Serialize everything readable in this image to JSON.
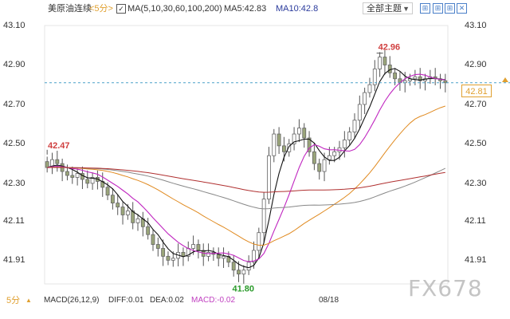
{
  "header": {
    "instrument": "美原油连续",
    "period": "<5分>",
    "check": "✓",
    "ma_params": "MA(5,10,30,60,100,200)",
    "ma5": "MA5:42.83",
    "ma10": "MA10:42.8",
    "theme_select": "全部主题",
    "tool_icons": [
      "grid-icon",
      "grid-icon",
      "grid-icon",
      "close-icon"
    ]
  },
  "footer": {
    "period": "5分",
    "macd_params": "MACD(26,12,9)",
    "diff": "DIFF:0.01",
    "dea": "DEA:0.02",
    "macd": "MACD:-0.02",
    "date": "08/18"
  },
  "watermark": "FX678",
  "colors": {
    "up": "#333333",
    "down": "#333333",
    "ma5": "#111111",
    "ma10": "#c026c0",
    "ma30": "#e08a20",
    "ma60": "#888888",
    "ma100": "#b03030",
    "current": "#e0a030",
    "high_label": "#d04040",
    "low_label": "#2a9a2a"
  },
  "chart_data": {
    "type": "candlestick",
    "y_ticks": [
      "43.10",
      "42.90",
      "42.70",
      "42.50",
      "42.30",
      "42.11",
      "41.91"
    ],
    "ylim": [
      41.79,
      43.1
    ],
    "current_price": "42.81",
    "annotations": {
      "left_label": "42.47",
      "high_label": "42.96",
      "low_label": "41.80"
    },
    "candles_close": [
      42.38,
      42.42,
      42.4,
      42.36,
      42.34,
      42.33,
      42.35,
      42.32,
      42.3,
      42.33,
      42.31,
      42.28,
      42.24,
      42.2,
      42.18,
      42.14,
      42.16,
      42.1,
      42.12,
      42.08,
      42.04,
      41.99,
      41.97,
      41.93,
      41.91,
      41.92,
      41.95,
      41.93,
      41.97,
      41.99,
      41.96,
      41.93,
      41.95,
      41.94,
      41.92,
      41.93,
      41.9,
      41.86,
      41.84,
      41.86,
      41.9,
      41.96,
      42.05,
      42.22,
      42.44,
      42.55,
      42.49,
      42.46,
      42.5,
      42.55,
      42.58,
      42.53,
      42.46,
      42.4,
      42.36,
      42.42,
      42.44,
      42.46,
      42.48,
      42.52,
      42.56,
      42.62,
      42.7,
      42.76,
      42.8,
      42.88,
      42.94,
      42.9,
      42.86,
      42.83,
      42.81,
      42.82,
      42.83,
      42.84,
      42.82,
      42.83,
      42.84,
      42.83,
      42.82,
      42.81
    ],
    "series": [
      {
        "name": "MA5"
      },
      {
        "name": "MA10"
      },
      {
        "name": "MA30"
      },
      {
        "name": "MA60"
      },
      {
        "name": "MA100"
      }
    ]
  }
}
